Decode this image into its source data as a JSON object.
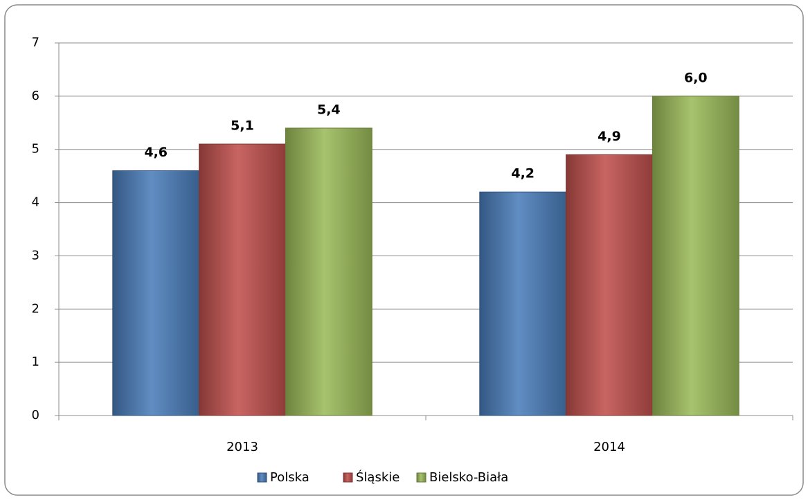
{
  "chart_data": {
    "type": "bar",
    "categories": [
      "2013",
      "2014"
    ],
    "series": [
      {
        "name": "Polska",
        "color": "#4a7ebb",
        "values": [
          4.6,
          4.2
        ],
        "value_labels": [
          "4,6",
          "4,2"
        ]
      },
      {
        "name": "Śląskie",
        "color": "#c0504d",
        "values": [
          5.1,
          4.9
        ],
        "value_labels": [
          "5,1",
          "4,9"
        ]
      },
      {
        "name": "Bielsko-Biała",
        "color": "#9bbb59",
        "values": [
          5.4,
          6.0
        ],
        "value_labels": [
          "5,4",
          "6,0"
        ]
      }
    ],
    "ylim": [
      0,
      7
    ],
    "yticks": [
      0,
      1,
      2,
      3,
      4,
      5,
      6,
      7
    ],
    "grid": true,
    "legend": "bottom"
  }
}
